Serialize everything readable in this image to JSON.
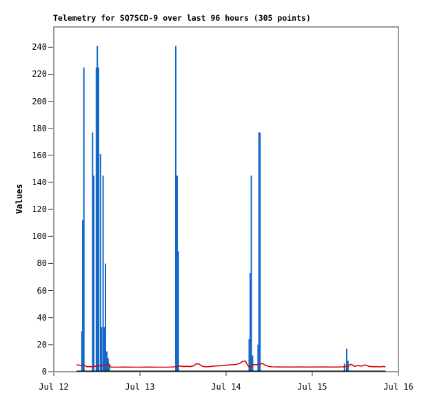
{
  "page": {
    "background": "#ffffff"
  },
  "chart_data": {
    "type": "line",
    "title": "Telemetry for SQ7SCD-9 over last 96 hours (305 points)",
    "ylabel": "Values",
    "xlabel": "",
    "x_unit": "hours since Jul 12 00:00",
    "xlim_hours": [
      0,
      96
    ],
    "ylim": [
      0,
      255
    ],
    "y_ticks": [
      0,
      20,
      40,
      60,
      80,
      100,
      120,
      140,
      160,
      180,
      200,
      220,
      240
    ],
    "x_ticks": [
      {
        "h": 0,
        "label": "Jul 12"
      },
      {
        "h": 24,
        "label": "Jul 13"
      },
      {
        "h": 48,
        "label": "Jul 14"
      },
      {
        "h": 72,
        "label": "Jul 15"
      },
      {
        "h": 96,
        "label": "Jul 16"
      }
    ],
    "grid": false,
    "legend": null,
    "colors": {
      "blue": "#1468C8",
      "red": "#DD0000",
      "black": "#000000",
      "border": "#333333"
    },
    "series": [
      {
        "name": "blue-spikes",
        "style": "impulse",
        "color": "#1468C8",
        "points": [
          [
            7.83,
            30
          ],
          [
            8.06,
            112
          ],
          [
            8.39,
            225
          ],
          [
            10.81,
            177
          ],
          [
            11.14,
            145
          ],
          [
            11.87,
            225
          ],
          [
            12.13,
            241
          ],
          [
            12.48,
            225
          ],
          [
            13.0,
            161
          ],
          [
            13.31,
            33
          ],
          [
            13.75,
            145
          ],
          [
            14.07,
            33
          ],
          [
            14.4,
            80
          ],
          [
            14.78,
            15
          ],
          [
            15.13,
            10
          ],
          [
            15.46,
            6
          ],
          [
            33.98,
            241
          ],
          [
            34.37,
            145
          ],
          [
            34.69,
            89
          ],
          [
            54.43,
            24
          ],
          [
            54.72,
            73
          ],
          [
            55.03,
            145
          ],
          [
            55.37,
            12
          ],
          [
            56.91,
            20
          ],
          [
            57.16,
            177
          ],
          [
            57.45,
            177
          ],
          [
            80.99,
            6
          ],
          [
            81.6,
            17
          ],
          [
            81.94,
            8
          ]
        ]
      },
      {
        "name": "red-channel",
        "style": "line",
        "color": "#DD0000",
        "points": [
          [
            6.34,
            5.0
          ],
          [
            6.9,
            5.0
          ],
          [
            7.3,
            4.6
          ],
          [
            8.8,
            4.4
          ],
          [
            9.2,
            3.7
          ],
          [
            10.6,
            3.7
          ],
          [
            11.5,
            4.0
          ],
          [
            14.6,
            5.0
          ],
          [
            15.0,
            5.6
          ],
          [
            15.4,
            5.2
          ],
          [
            15.9,
            3.4
          ],
          [
            17.7,
            3.3
          ],
          [
            19.6,
            3.4
          ],
          [
            23.4,
            3.3
          ],
          [
            26.3,
            3.4
          ],
          [
            29.2,
            3.3
          ],
          [
            32.1,
            3.3
          ],
          [
            33.4,
            3.6
          ],
          [
            34.2,
            3.6
          ],
          [
            34.9,
            4.3
          ],
          [
            35.5,
            4.0
          ],
          [
            36.5,
            3.8
          ],
          [
            37.2,
            4.0
          ],
          [
            38.0,
            3.8
          ],
          [
            38.8,
            4.2
          ],
          [
            39.4,
            5.2
          ],
          [
            39.7,
            5.9
          ],
          [
            40.5,
            5.6
          ],
          [
            41.1,
            4.4
          ],
          [
            41.7,
            3.9
          ],
          [
            42.6,
            3.6
          ],
          [
            43.6,
            3.8
          ],
          [
            44.5,
            4.1
          ],
          [
            46.1,
            4.4
          ],
          [
            47.6,
            4.7
          ],
          [
            49.2,
            5.0
          ],
          [
            50.7,
            5.3
          ],
          [
            51.8,
            6.2
          ],
          [
            52.6,
            7.6
          ],
          [
            53.4,
            7.8
          ],
          [
            54.0,
            4.8
          ],
          [
            54.3,
            3.7
          ],
          [
            54.9,
            3.7
          ],
          [
            55.7,
            5.2
          ],
          [
            56.3,
            5.3
          ],
          [
            56.8,
            5.0
          ],
          [
            57.6,
            5.6
          ],
          [
            58.0,
            6.1
          ],
          [
            58.6,
            5.4
          ],
          [
            59.1,
            4.6
          ],
          [
            59.9,
            3.9
          ],
          [
            60.9,
            3.6
          ],
          [
            62.8,
            3.5
          ],
          [
            65.7,
            3.4
          ],
          [
            68.5,
            3.5
          ],
          [
            71.4,
            3.4
          ],
          [
            74.3,
            3.5
          ],
          [
            77.2,
            3.4
          ],
          [
            79.5,
            3.5
          ],
          [
            80.5,
            3.6
          ],
          [
            81.0,
            3.8
          ],
          [
            82.0,
            3.9
          ],
          [
            82.6,
            5.4
          ],
          [
            83.1,
            5.2
          ],
          [
            83.5,
            4.2
          ],
          [
            84.1,
            4.0
          ],
          [
            84.7,
            4.7
          ],
          [
            85.3,
            4.2
          ],
          [
            86.0,
            4.3
          ],
          [
            86.6,
            5.0
          ],
          [
            87.2,
            4.6
          ],
          [
            87.7,
            4.0
          ],
          [
            88.7,
            3.7
          ],
          [
            89.9,
            3.7
          ],
          [
            91.0,
            3.6
          ],
          [
            91.8,
            3.9
          ],
          [
            92.4,
            3.5
          ]
        ]
      },
      {
        "name": "black-channel",
        "style": "line",
        "color": "#000000",
        "points": [
          [
            6.34,
            0.35
          ],
          [
            92.4,
            0.35
          ]
        ]
      }
    ]
  }
}
